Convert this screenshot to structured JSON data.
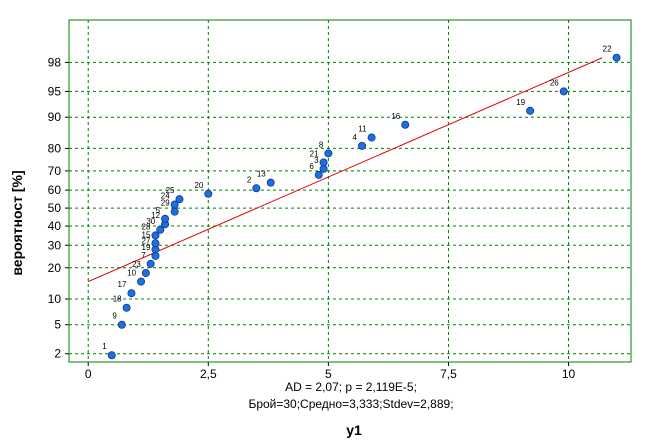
{
  "chart_data": {
    "type": "scatter",
    "subtype": "normal-probability-plot",
    "xlabel": "y1",
    "ylabel": "вероятност [%]",
    "xlim": [
      -0.4,
      11.3
    ],
    "ylim_percent": [
      1.5,
      99.6
    ],
    "y_scale": "normal-probability",
    "xticks": [
      "0",
      "2,5",
      "5",
      "7,5",
      "10"
    ],
    "xtick_values": [
      0,
      2.5,
      5,
      7.5,
      10
    ],
    "yticks": [
      "2",
      "5",
      "10",
      "20",
      "30",
      "40",
      "50",
      "60",
      "70",
      "80",
      "90",
      "95",
      "98"
    ],
    "ytick_values": [
      2,
      5,
      10,
      20,
      30,
      40,
      50,
      60,
      70,
      80,
      90,
      95,
      98
    ],
    "stats_line1": "AD = 2,07; p = 2,119E-5;",
    "stats_line2": "Брой=30;Средно=3,333;Stdev=2,889;",
    "fit_line": {
      "x": [
        0,
        10.7
      ],
      "percent": [
        15.0,
        98.3
      ]
    },
    "points": [
      {
        "label": "1",
        "x": 0.49,
        "percent": 1.9
      },
      {
        "label": "9",
        "x": 0.7,
        "percent": 5.0
      },
      {
        "label": "18",
        "x": 0.8,
        "percent": 8.0
      },
      {
        "label": "17",
        "x": 0.9,
        "percent": 11.5
      },
      {
        "label": "10",
        "x": 1.1,
        "percent": 15.0
      },
      {
        "label": "23",
        "x": 1.2,
        "percent": 18.0
      },
      {
        "label": "7",
        "x": 1.3,
        "percent": 21.6
      },
      {
        "label": "19",
        "x": 1.4,
        "percent": 25.0
      },
      {
        "label": "27",
        "x": 1.4,
        "percent": 28.0
      },
      {
        "label": "15",
        "x": 1.4,
        "percent": 31.0
      },
      {
        "label": "28",
        "x": 1.4,
        "percent": 35.0
      },
      {
        "label": "30",
        "x": 1.5,
        "percent": 38.0
      },
      {
        "label": "12",
        "x": 1.6,
        "percent": 41.0
      },
      {
        "label": "5",
        "x": 1.6,
        "percent": 44.0
      },
      {
        "label": "29",
        "x": 1.8,
        "percent": 48.0
      },
      {
        "label": "24",
        "x": 1.8,
        "percent": 52.0
      },
      {
        "label": "25",
        "x": 1.9,
        "percent": 55.0
      },
      {
        "label": "20",
        "x": 2.5,
        "percent": 58.0
      },
      {
        "label": "2",
        "x": 3.5,
        "percent": 61.0
      },
      {
        "label": "13",
        "x": 3.8,
        "percent": 64.0
      },
      {
        "label": "6",
        "x": 4.8,
        "percent": 68.0
      },
      {
        "label": "3",
        "x": 4.9,
        "percent": 71.0
      },
      {
        "label": "21",
        "x": 4.9,
        "percent": 74.0
      },
      {
        "label": "8",
        "x": 5.0,
        "percent": 78.0
      },
      {
        "label": "4",
        "x": 5.7,
        "percent": 81.0
      },
      {
        "label": "11",
        "x": 5.9,
        "percent": 84.0
      },
      {
        "label": "16",
        "x": 6.6,
        "percent": 88.0
      },
      {
        "label": "19",
        "x": 9.2,
        "percent": 91.5
      },
      {
        "label": "26",
        "x": 9.9,
        "percent": 95.0
      },
      {
        "label": "22",
        "x": 11.0,
        "percent": 98.3
      }
    ],
    "colors": {
      "frame": "#008000",
      "grid": "#008000",
      "fit_line": "#e00000",
      "point_fill": "#1f6fe0",
      "point_stroke": "#0a3a8a"
    },
    "grid": true
  }
}
